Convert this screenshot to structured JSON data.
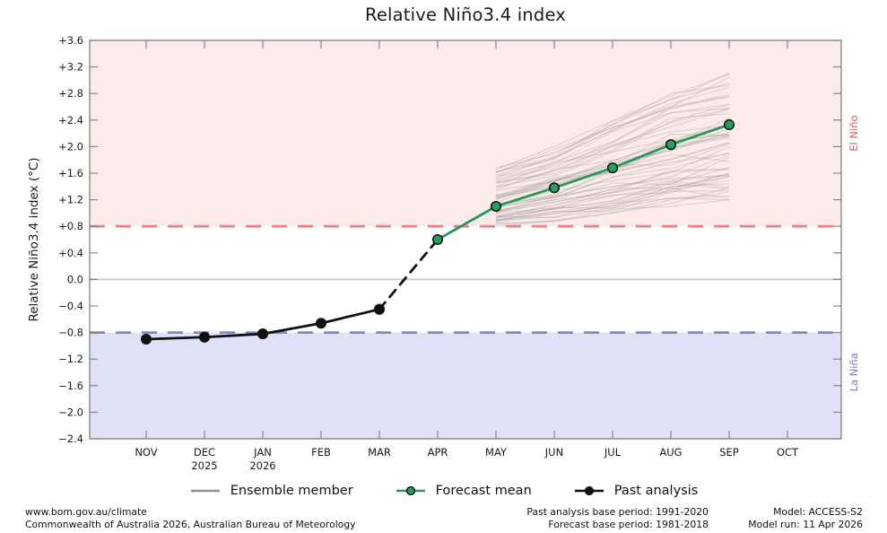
{
  "title": "Relative Niño3.4 index",
  "legend": {
    "ensemble_label": "Ensemble member",
    "forecast_label": "Forecast mean",
    "past_label": "Past analysis"
  },
  "footer": {
    "left_line1": "www.bom.gov.au/climate",
    "left_line2": "Commonwealth of Australia 2026, Australian Bureau of Meteorology",
    "mid_line1": "Past analysis base period: 1991-2020",
    "mid_line2": "Forecast base period: 1981-2018",
    "right_line1": "Model: ACCESS-S2",
    "right_line2": "Model run: 11 Apr 2026"
  },
  "chart_data": {
    "type": "line",
    "title": "Relative Niño3.4 index",
    "ylabel": "Relative Niño3.4 index (°C)",
    "ylim": [
      -2.4,
      3.6
    ],
    "ytick_step": 0.4,
    "months": [
      "NOV",
      "DEC",
      "JAN",
      "FEB",
      "MAR",
      "APR",
      "MAY",
      "JUN",
      "JUL",
      "AUG",
      "SEP",
      "OCT"
    ],
    "year_labels": [
      {
        "month_index": 1,
        "year": "2025"
      },
      {
        "month_index": 2,
        "year": "2026"
      }
    ],
    "thresholds": {
      "el_nino": 0.8,
      "la_nina": -0.8
    },
    "region_labels": {
      "el_nino": "El Niño",
      "la_nina": "La Niña"
    },
    "series": [
      {
        "name": "Past analysis",
        "x": [
          "NOV",
          "DEC",
          "JAN",
          "FEB",
          "MAR"
        ],
        "values": [
          -0.9,
          -0.87,
          -0.82,
          -0.66,
          -0.45
        ],
        "color": "#111111",
        "dashed": false,
        "markers": true,
        "marker_fill": "#111111"
      },
      {
        "name": "Transition",
        "x": [
          "MAR",
          "APR"
        ],
        "values": [
          -0.45,
          0.6
        ],
        "color": "#111111",
        "dashed": true,
        "markers": false,
        "marker_fill": "#111111"
      },
      {
        "name": "Forecast mean",
        "x": [
          "APR",
          "MAY",
          "JUN",
          "JUL",
          "AUG",
          "SEP"
        ],
        "values": [
          0.6,
          1.1,
          1.38,
          1.68,
          2.03,
          2.33
        ],
        "color": "#27975a",
        "dashed": false,
        "markers": true,
        "marker_fill": "#2a9d5c"
      }
    ],
    "ensemble": {
      "count": 55,
      "x": [
        "MAY",
        "JUN",
        "JUL",
        "AUG",
        "SEP"
      ],
      "mean": [
        1.1,
        1.38,
        1.68,
        2.03,
        2.33
      ],
      "spread_min": [
        0.8,
        0.88,
        1.0,
        1.1,
        1.2
      ],
      "spread_max": [
        1.68,
        2.0,
        2.4,
        2.8,
        3.1
      ],
      "seed": 20260411
    },
    "colors": {
      "el_nino_band": "#fcebea",
      "la_nina_band": "#e0e1f6",
      "el_nino_line": "#f58080",
      "la_nina_line": "#8587cb",
      "zero_line": "#cccccc",
      "ensemble": "#909090",
      "forecast": "#27975a",
      "past": "#111111",
      "frame": "#7f7f7f",
      "el_nino_text": "#e05a5a",
      "la_nina_text": "#7a7bc0",
      "tick_text": "#1a1a1a"
    }
  }
}
